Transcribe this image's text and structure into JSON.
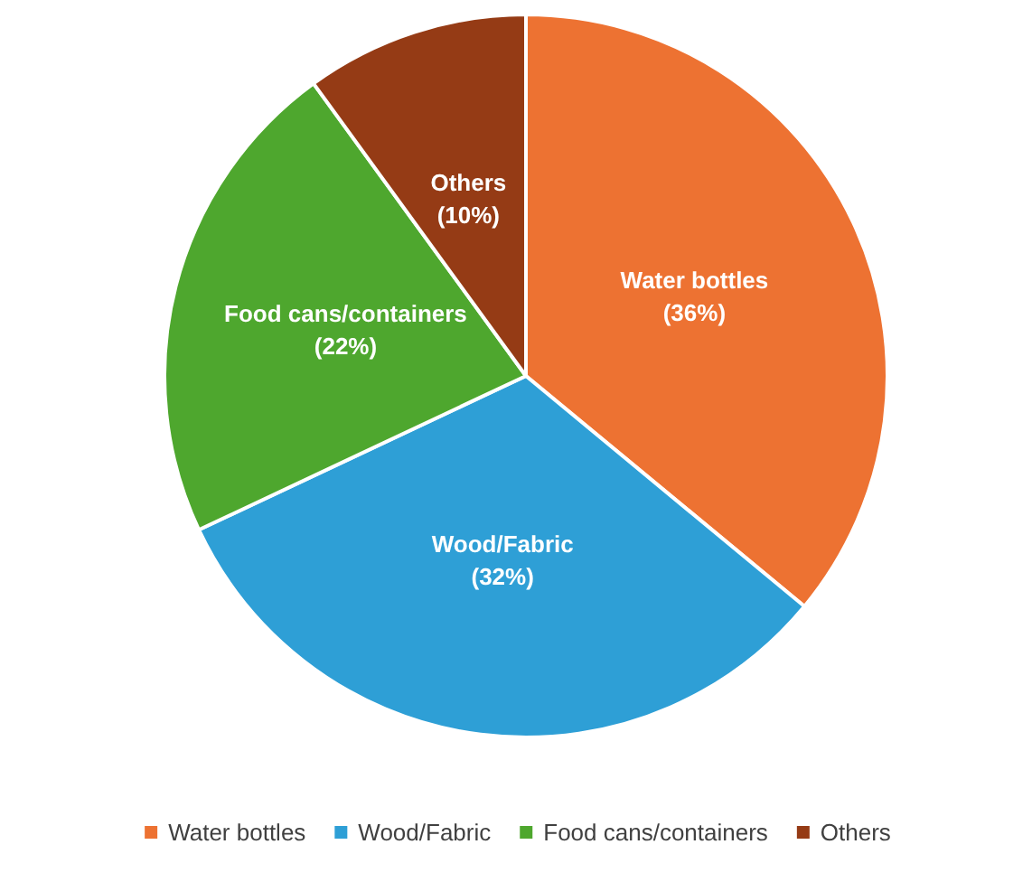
{
  "chart_data": {
    "type": "pie",
    "categories": [
      "Water bottles",
      "Wood/Fabric",
      "Food cans/containers",
      "Others"
    ],
    "values": [
      36,
      32,
      22,
      10
    ],
    "colors": [
      "#ed7232",
      "#2e9fd6",
      "#4ea72e",
      "#953b15"
    ],
    "value_labels": [
      "(36%)",
      "(32%)",
      "(22%)",
      "(10%)"
    ],
    "legend": "bottom"
  }
}
